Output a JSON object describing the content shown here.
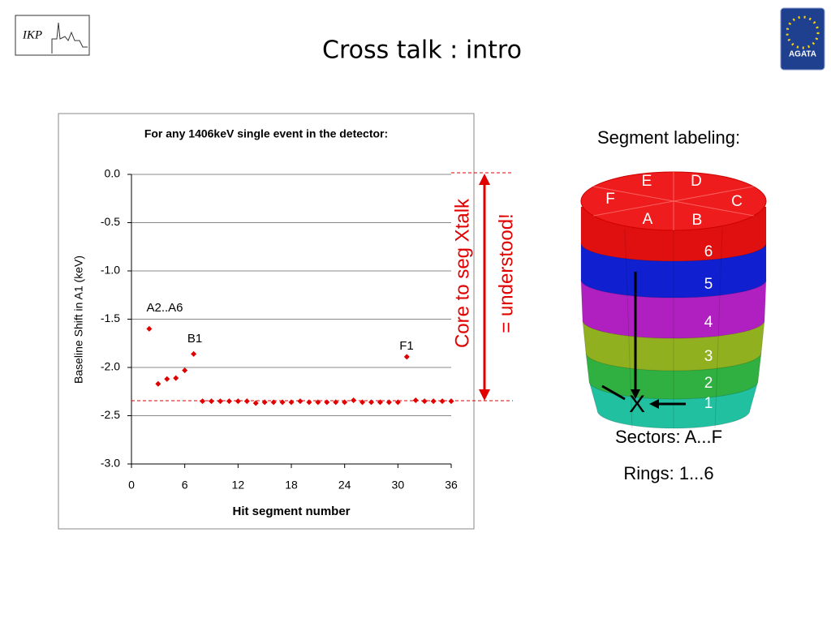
{
  "slide": {
    "title": "Cross talk : intro",
    "logo_left": "IKP",
    "logo_right": "AGATA",
    "callout": [
      "Core to seg Xtalk",
      "= understood!"
    ],
    "diagram": {
      "heading": "Segment labeling:",
      "sectors": [
        "A",
        "B",
        "C",
        "D",
        "E",
        "F"
      ],
      "rings": [
        "1",
        "2",
        "3",
        "4",
        "5",
        "6"
      ],
      "marker": "X",
      "caption_sectors": "Sectors: A...F",
      "caption_rings": "Rings: 1...6"
    }
  },
  "chart_data": {
    "type": "scatter",
    "title": "For any 1406keV single event in the detector:",
    "x_label": "Hit segment number",
    "y_label": "Baseline Shift in A1 (keV)",
    "color": "#e00000",
    "x": [
      2,
      3,
      4,
      5,
      6,
      7,
      8,
      9,
      10,
      11,
      12,
      13,
      14,
      15,
      16,
      17,
      18,
      19,
      20,
      21,
      22,
      23,
      24,
      25,
      26,
      27,
      28,
      29,
      30,
      31,
      32,
      33,
      34,
      35,
      36
    ],
    "values": [
      -1.6,
      -2.17,
      -2.12,
      -2.11,
      -2.03,
      -1.86,
      -2.35,
      -2.35,
      -2.35,
      -2.35,
      -2.35,
      -2.35,
      -2.37,
      -2.36,
      -2.36,
      -2.36,
      -2.36,
      -2.35,
      -2.36,
      -2.36,
      -2.36,
      -2.36,
      -2.36,
      -2.34,
      -2.36,
      -2.36,
      -2.36,
      -2.36,
      -2.36,
      -1.89,
      -2.34,
      -2.35,
      -2.35,
      -2.35,
      -2.35
    ],
    "annotations": [
      "A2..A6",
      "B1",
      "F1"
    ],
    "xlim": [
      0,
      36
    ],
    "xticks": [
      0,
      6,
      12,
      18,
      24,
      30,
      36
    ],
    "ylim": [
      -3,
      0
    ],
    "yticks": [
      {
        "value": 0,
        "label": "0.0"
      },
      -0.5,
      {
        "value": -1,
        "label": "-1.0"
      },
      -1.5,
      {
        "value": -2,
        "label": "-2.0"
      },
      -2.5,
      {
        "value": -3,
        "label": "-3.0"
      }
    ]
  }
}
